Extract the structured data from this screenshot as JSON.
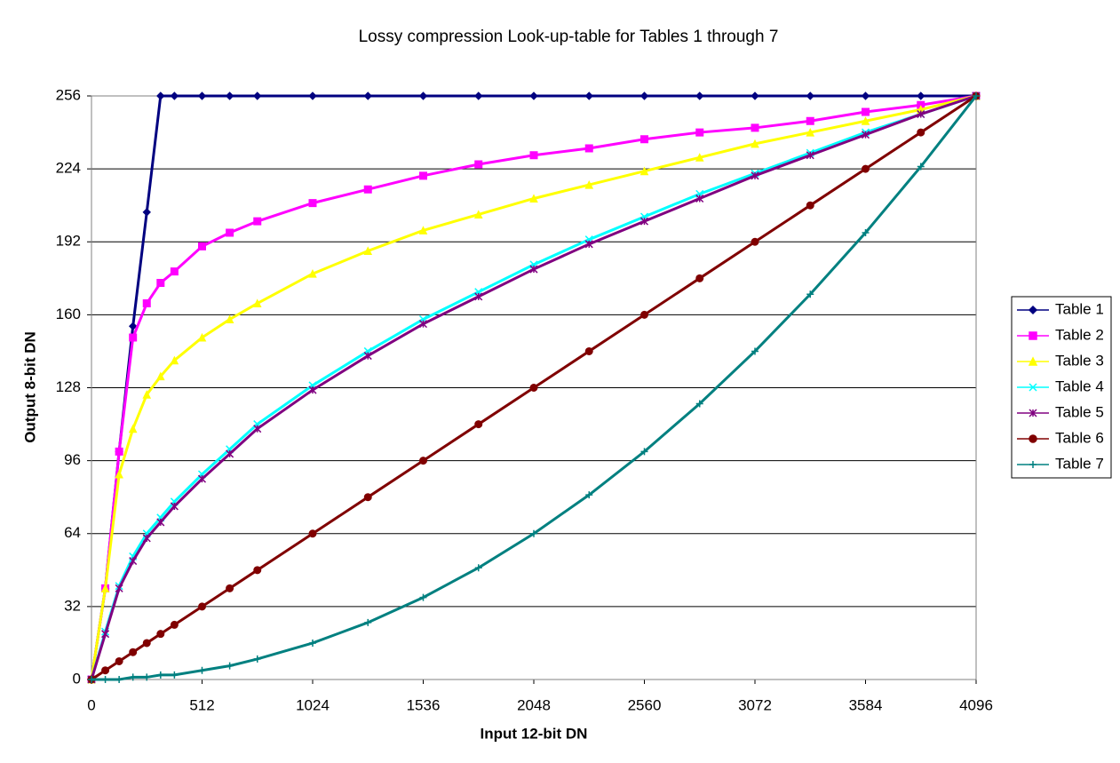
{
  "chart_data": {
    "type": "line",
    "title": "Lossy compression Look-up-table for Tables 1 through 7",
    "x_label": "Input 12-bit DN",
    "y_label": "Output 8-bit DN",
    "x": [
      0,
      64,
      128,
      192,
      256,
      320,
      384,
      512,
      640,
      768,
      1024,
      1280,
      1536,
      1792,
      2048,
      2304,
      2560,
      2816,
      3072,
      3328,
      3584,
      3840,
      4096
    ],
    "xlim": [
      0,
      4096
    ],
    "xticks": [
      0,
      512,
      1024,
      1536,
      2048,
      2560,
      3072,
      3584,
      4096
    ],
    "ylim": [
      0,
      256
    ],
    "yticks": [
      0,
      32,
      64,
      96,
      128,
      160,
      192,
      224,
      256
    ],
    "grid": true,
    "legend": "right",
    "series": [
      {
        "name": "Table 1",
        "color": "#000080",
        "marker": "diamond",
        "values": [
          0,
          40,
          100,
          155,
          205,
          256,
          256,
          256,
          256,
          256,
          256,
          256,
          256,
          256,
          256,
          256,
          256,
          256,
          256,
          256,
          256,
          256,
          256
        ]
      },
      {
        "name": "Table 2",
        "color": "#ff00ff",
        "marker": "square",
        "values": [
          0,
          40,
          100,
          150,
          165,
          174,
          179,
          190,
          196,
          201,
          209,
          215,
          221,
          226,
          230,
          233,
          237,
          240,
          242,
          245,
          249,
          252,
          256
        ]
      },
      {
        "name": "Table 3",
        "color": "#ffff00",
        "marker": "triangle",
        "values": [
          0,
          40,
          90,
          110,
          125,
          133,
          140,
          150,
          158,
          165,
          178,
          188,
          197,
          204,
          211,
          217,
          223,
          229,
          235,
          240,
          245,
          250,
          256
        ]
      },
      {
        "name": "Table 4",
        "color": "#00ffff",
        "marker": "x",
        "values": [
          0,
          21,
          41,
          54,
          64,
          71,
          78,
          90,
          101,
          112,
          129,
          144,
          158,
          170,
          182,
          193,
          203,
          213,
          222,
          231,
          240,
          248,
          256
        ]
      },
      {
        "name": "Table 5",
        "color": "#800080",
        "marker": "star",
        "values": [
          0,
          20,
          40,
          52,
          62,
          69,
          76,
          88,
          99,
          110,
          127,
          142,
          156,
          168,
          180,
          191,
          201,
          211,
          221,
          230,
          239,
          248,
          256
        ]
      },
      {
        "name": "Table 6",
        "color": "#800000",
        "marker": "circle",
        "values": [
          0,
          4,
          8,
          12,
          16,
          20,
          24,
          32,
          40,
          48,
          64,
          80,
          96,
          112,
          128,
          144,
          160,
          176,
          192,
          208,
          224,
          240,
          256
        ]
      },
      {
        "name": "Table 7",
        "color": "#008080",
        "marker": "plus",
        "values": [
          0,
          0,
          0,
          1,
          1,
          2,
          2,
          4,
          6,
          9,
          16,
          25,
          36,
          49,
          64,
          81,
          100,
          121,
          144,
          169,
          196,
          225,
          256
        ]
      }
    ]
  }
}
